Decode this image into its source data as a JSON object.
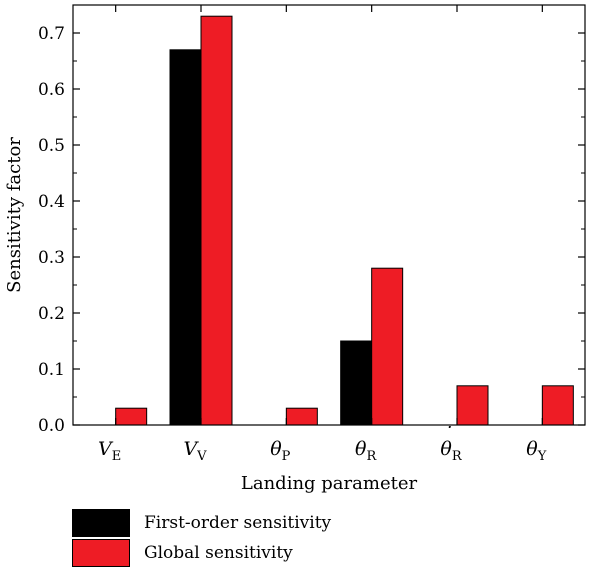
{
  "chart_data": {
    "type": "bar",
    "categories": [
      {
        "base": "V",
        "sub": "E",
        "dot": false
      },
      {
        "base": "V",
        "sub": "V",
        "dot": false
      },
      {
        "base": "θ",
        "sub": "P",
        "dot": false
      },
      {
        "base": "θ",
        "sub": "R",
        "dot": false
      },
      {
        "base": "θ",
        "sub": "R",
        "dot": true
      },
      {
        "base": "θ",
        "sub": "Y",
        "dot": false
      }
    ],
    "series": [
      {
        "name": "First-order sensitivity",
        "color": "#000000",
        "values": [
          0.0,
          0.67,
          0.0,
          0.15,
          0.0,
          0.0
        ]
      },
      {
        "name": "Global sensitivity",
        "color": "#ee1c25",
        "values": [
          0.03,
          0.73,
          0.03,
          0.28,
          0.07,
          0.07
        ]
      }
    ],
    "xlabel": "Landing parameter",
    "ylabel": "Sensitivity factor",
    "ylim": [
      0,
      0.75
    ],
    "yticks": [
      "0.0",
      "0.1",
      "0.2",
      "0.3",
      "0.4",
      "0.5",
      "0.6",
      "0.7"
    ],
    "grid": false,
    "legend_position": "bottom-left"
  }
}
